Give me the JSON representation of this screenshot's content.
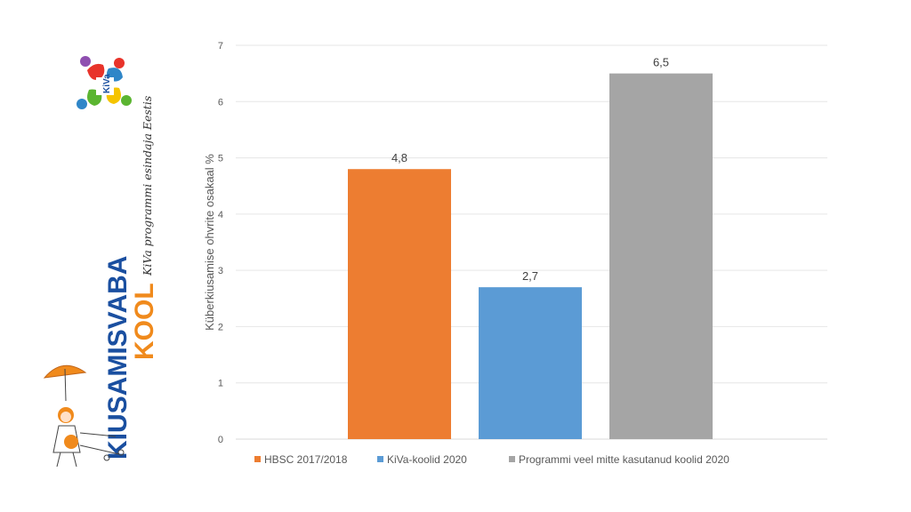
{
  "brand": {
    "logo_text": "KiVa",
    "title_line1": "KIUSAMISVABA",
    "title_line2": "KOOL",
    "tagline": "KiVa programmi esindaja Eestis",
    "colors": {
      "blue": "#1a4fa0",
      "orange": "#f08a1c",
      "logo_red": "#e8332a",
      "logo_green": "#5bb531",
      "logo_blue": "#2f86c8",
      "logo_yellow": "#f5c400",
      "logo_purple": "#8f4fb0"
    },
    "icons": [
      "kiva-logo-icon",
      "children-umbrella-illustration"
    ]
  },
  "chart_data": {
    "type": "bar",
    "categories": [
      "HBSC 2017/2018",
      "KiVa-koolid 2020",
      "Programmi veel mitte kasutanud koolid 2020"
    ],
    "values": [
      4.8,
      2.7,
      6.5
    ],
    "value_labels": [
      "4,8",
      "2,7",
      "6,5"
    ],
    "colors": [
      "#ed7d31",
      "#5b9bd5",
      "#a5a5a5"
    ],
    "title": "",
    "xlabel": "",
    "ylabel": "Küberkiusamise ohvrite osakaal %",
    "ylim": [
      0,
      7
    ],
    "yticks": [
      0,
      1,
      2,
      3,
      4,
      5,
      6,
      7
    ],
    "ytick_labels": [
      "0",
      "1",
      "2",
      "3",
      "4",
      "5",
      "6",
      "7"
    ],
    "grid": true,
    "legend_position": "bottom",
    "legend": [
      "HBSC 2017/2018",
      "KiVa-koolid 2020",
      "Programmi veel mitte kasutanud koolid 2020"
    ]
  }
}
